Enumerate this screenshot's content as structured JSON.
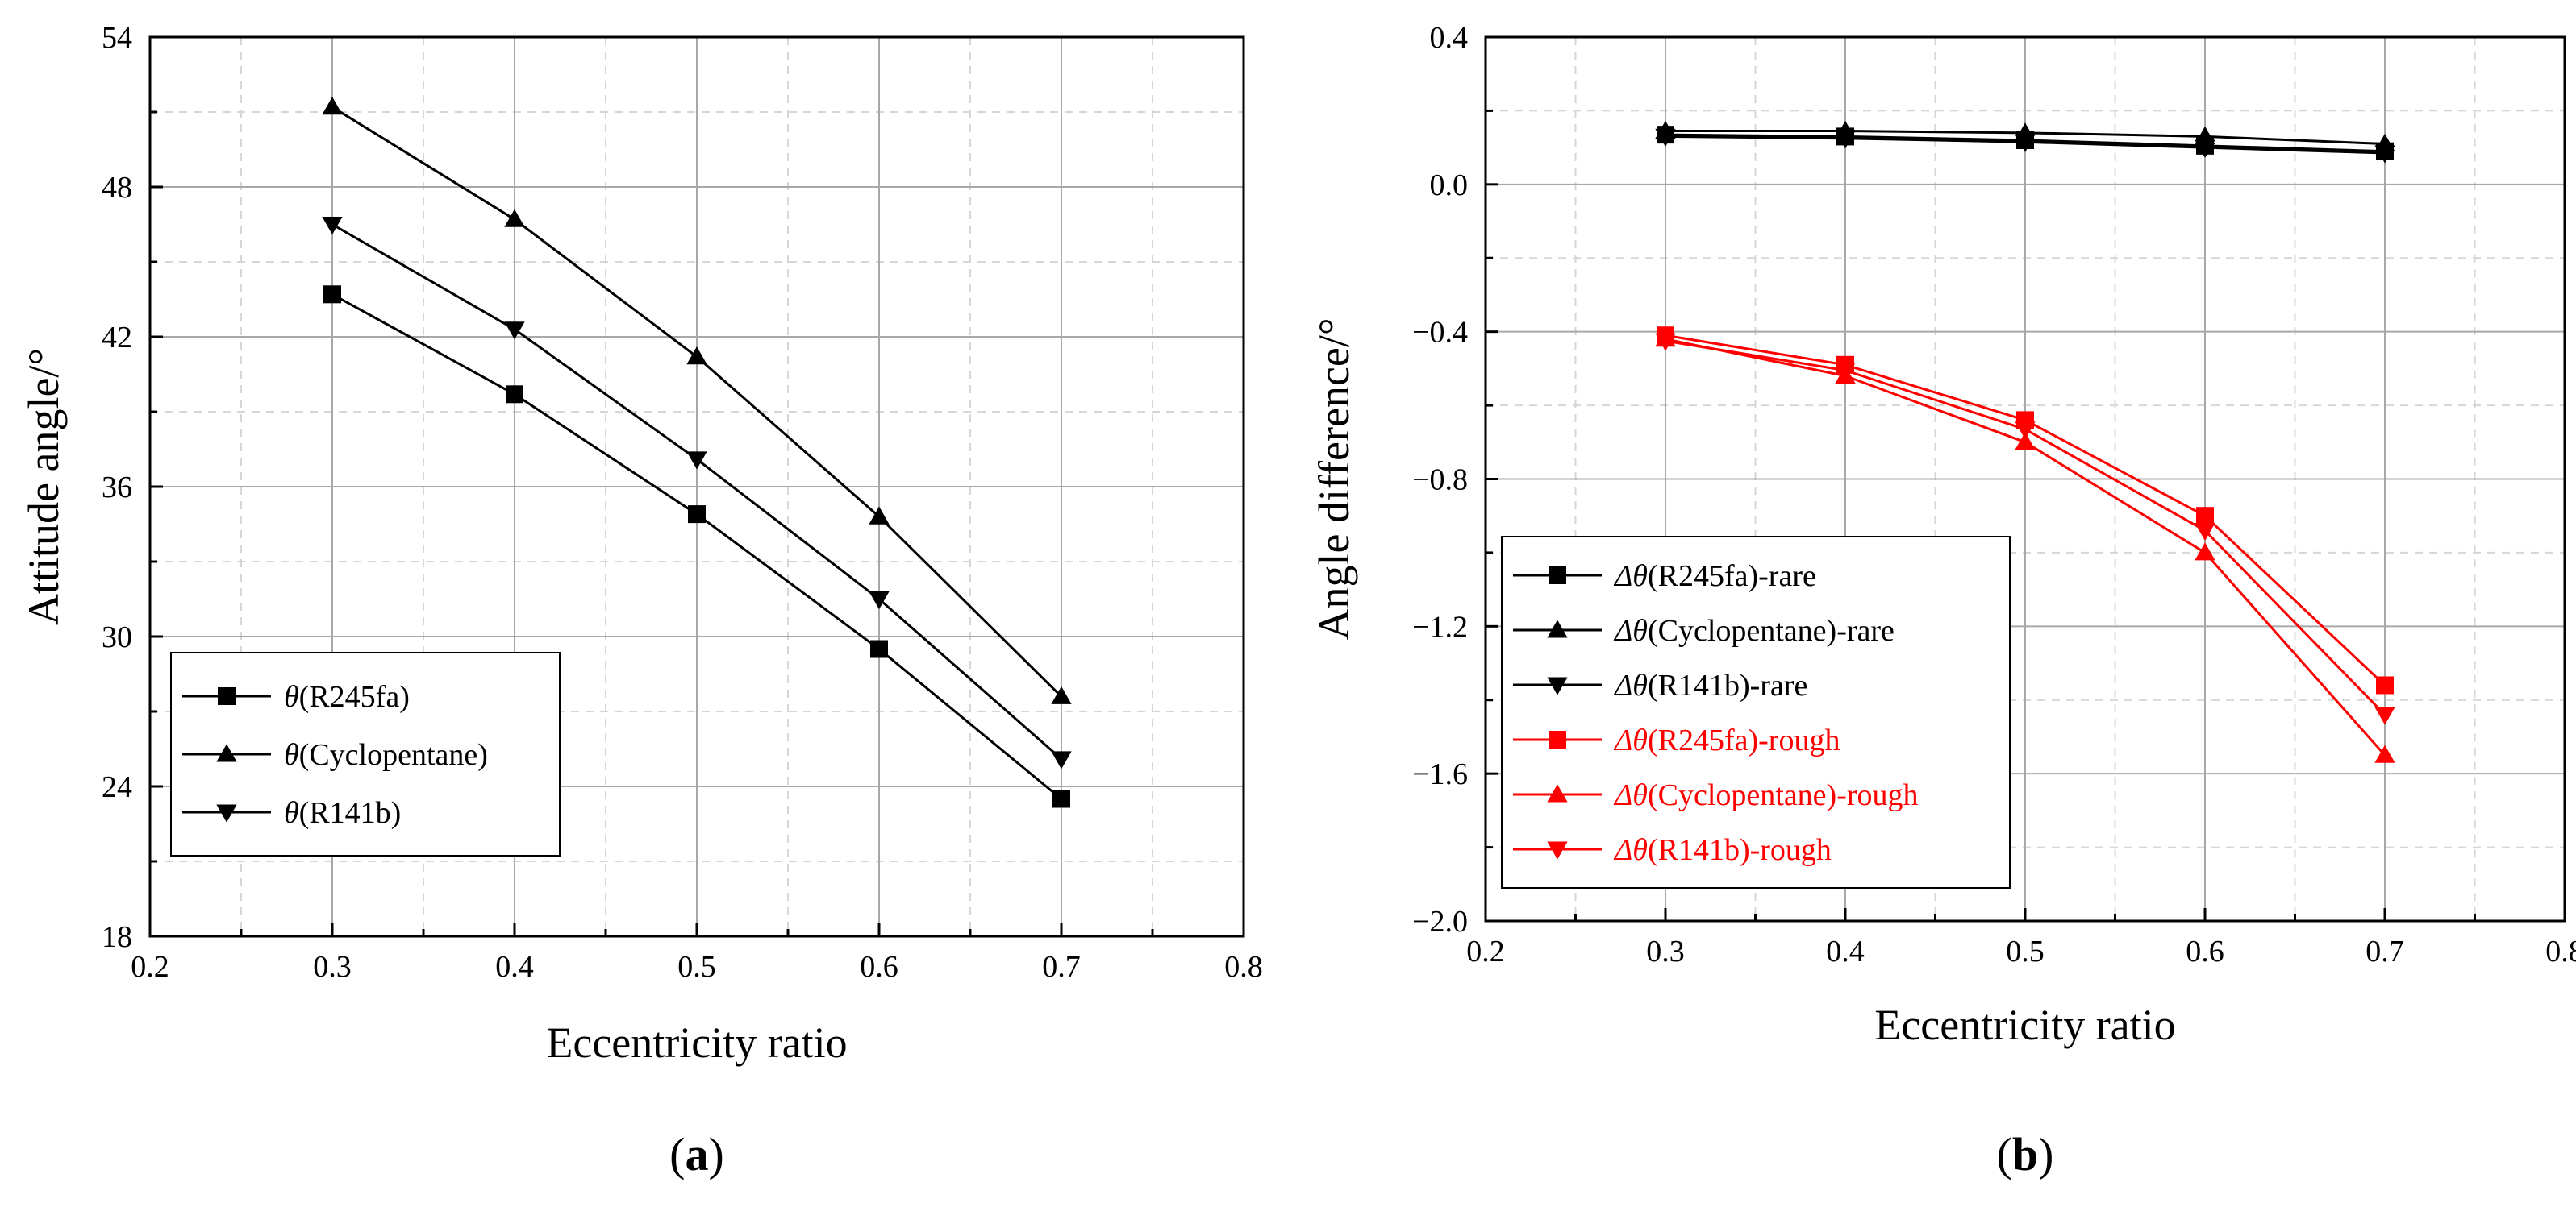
{
  "chart_data": [
    {
      "panel": "a",
      "panel_label_prefix": "(",
      "panel_label_letter": "a",
      "panel_label_suffix": ")",
      "type": "line",
      "xlabel": "Eccentricity ratio",
      "ylabel": "Attitude angle/°",
      "xlim": [
        0.2,
        0.8
      ],
      "ylim": [
        18,
        54
      ],
      "x_ticks": [
        0.2,
        0.3,
        0.4,
        0.5,
        0.6,
        0.7,
        0.8
      ],
      "x_tick_labels": [
        "0.2",
        "0.3",
        "0.4",
        "0.5",
        "0.6",
        "0.7",
        "0.8"
      ],
      "y_ticks": [
        18,
        24,
        30,
        36,
        42,
        48,
        54
      ],
      "y_tick_labels": [
        "18",
        "24",
        "30",
        "36",
        "42",
        "48",
        "54"
      ],
      "grid": true,
      "legend_position": "bottom-left",
      "series": [
        {
          "name": "θ(R245fa)",
          "symbol": "θ",
          "label_rest": "(R245fa)",
          "marker": "square",
          "color": "#000000",
          "x": [
            0.3,
            0.4,
            0.5,
            0.6,
            0.7
          ],
          "values": [
            43.7,
            39.7,
            34.9,
            29.5,
            23.5
          ]
        },
        {
          "name": "θ(Cyclopentane)",
          "symbol": "θ",
          "label_rest": "(Cyclopentane)",
          "marker": "triangle-up",
          "color": "#000000",
          "x": [
            0.3,
            0.4,
            0.5,
            0.6,
            0.7
          ],
          "values": [
            51.2,
            46.7,
            41.2,
            34.8,
            27.6
          ]
        },
        {
          "name": "θ(R141b)",
          "symbol": "θ",
          "label_rest": "(R141b)",
          "marker": "triangle-down",
          "color": "#000000",
          "x": [
            0.3,
            0.4,
            0.5,
            0.6,
            0.7
          ],
          "values": [
            46.5,
            42.3,
            37.1,
            31.5,
            25.1
          ]
        }
      ]
    },
    {
      "panel": "b",
      "panel_label_prefix": "(",
      "panel_label_letter": "b",
      "panel_label_suffix": ")",
      "type": "line",
      "xlabel": "Eccentricity ratio",
      "ylabel": "Angle difference/°",
      "xlim": [
        0.2,
        0.8
      ],
      "ylim": [
        -2.0,
        0.4
      ],
      "x_ticks": [
        0.2,
        0.3,
        0.4,
        0.5,
        0.6,
        0.7,
        0.8
      ],
      "x_tick_labels": [
        "0.2",
        "0.3",
        "0.4",
        "0.5",
        "0.6",
        "0.7",
        "0.8"
      ],
      "y_ticks": [
        -2.0,
        -1.6,
        -1.2,
        -0.8,
        -0.4,
        0.0,
        0.4
      ],
      "y_tick_labels": [
        "−2.0",
        "−1.6",
        "−1.2",
        "−0.8",
        "−0.4",
        "0.0",
        "0.4"
      ],
      "grid": true,
      "legend_position": "bottom-left",
      "series": [
        {
          "name": "Δθ(R245fa)-rare",
          "symbol": "Δθ",
          "label_rest": "(R245fa)-rare",
          "marker": "square",
          "color": "#000000",
          "x": [
            0.3,
            0.4,
            0.5,
            0.6,
            0.7
          ],
          "values": [
            0.135,
            0.13,
            0.12,
            0.105,
            0.09
          ]
        },
        {
          "name": "Δθ(Cyclopentane)-rare",
          "symbol": "Δθ",
          "label_rest": "(Cyclopentane)-rare",
          "marker": "triangle-up",
          "color": "#000000",
          "x": [
            0.3,
            0.4,
            0.5,
            0.6,
            0.7
          ],
          "values": [
            0.145,
            0.145,
            0.14,
            0.13,
            0.11
          ]
        },
        {
          "name": "Δθ(R141b)-rare",
          "symbol": "Δθ",
          "label_rest": "(R141b)-rare",
          "marker": "triangle-down",
          "color": "#000000",
          "x": [
            0.3,
            0.4,
            0.5,
            0.6,
            0.7
          ],
          "values": [
            0.13,
            0.125,
            0.115,
            0.1,
            0.085
          ]
        },
        {
          "name": "Δθ(R245fa)-rough",
          "symbol": "Δθ",
          "label_rest": "(R245fa)-rough",
          "marker": "square",
          "color": "#ff0000",
          "x": [
            0.3,
            0.4,
            0.5,
            0.6,
            0.7
          ],
          "values": [
            -0.41,
            -0.49,
            -0.64,
            -0.9,
            -1.36
          ]
        },
        {
          "name": "Δθ(Cyclopentane)-rough",
          "symbol": "Δθ",
          "label_rest": "(Cyclopentane)-rough",
          "marker": "triangle-up",
          "color": "#ff0000",
          "x": [
            0.3,
            0.4,
            0.5,
            0.6,
            0.7
          ],
          "values": [
            -0.42,
            -0.52,
            -0.7,
            -1.0,
            -1.55
          ]
        },
        {
          "name": "Δθ(R141b)-rough",
          "symbol": "Δθ",
          "label_rest": "(R141b)-rough",
          "marker": "triangle-down",
          "color": "#ff0000",
          "x": [
            0.3,
            0.4,
            0.5,
            0.6,
            0.7
          ],
          "values": [
            -0.425,
            -0.505,
            -0.665,
            -0.94,
            -1.44
          ]
        }
      ]
    }
  ]
}
